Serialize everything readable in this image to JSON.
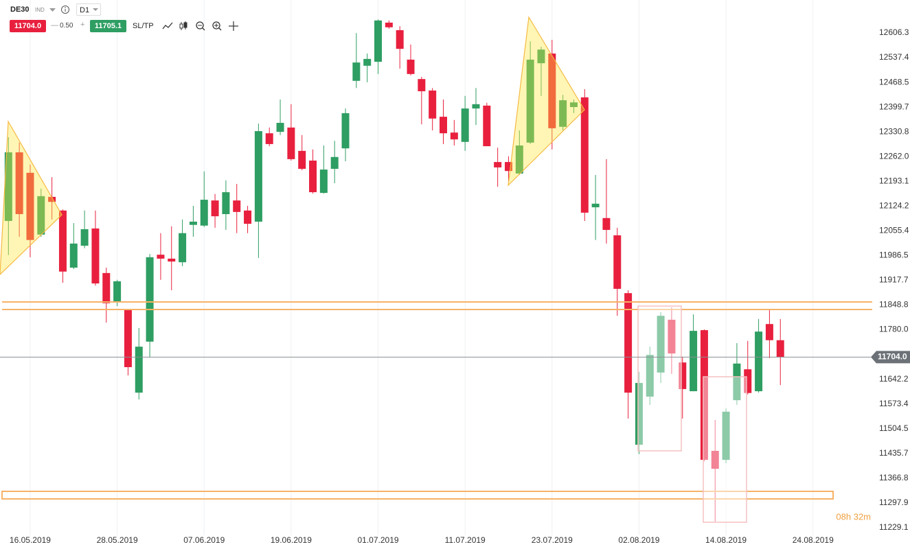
{
  "header": {
    "symbol": "DE30",
    "market": "IND",
    "timeframe": "D1",
    "sell": "11704.0",
    "spread": "0.50",
    "buy": "11705.1",
    "sltp": "SL/TP"
  },
  "chart_data": {
    "type": "candlestick",
    "categories": [
      null,
      null,
      "16.05.2019",
      null,
      null,
      null,
      null,
      null,
      null,
      null,
      "28.05.2019",
      null,
      null,
      null,
      null,
      null,
      null,
      null,
      "07.06.2019",
      null,
      null,
      null,
      null,
      null,
      null,
      null,
      "19.06.2019",
      null,
      null,
      null,
      null,
      null,
      null,
      null,
      "01.07.2019",
      null,
      null,
      null,
      null,
      null,
      null,
      null,
      "11.07.2019",
      null,
      null,
      null,
      null,
      null,
      null,
      null,
      "23.07.2019",
      null,
      null,
      null,
      null,
      null,
      null,
      null,
      "02.08.2019",
      null,
      null,
      null,
      null,
      null,
      null,
      null,
      "14.08.2019",
      null,
      null,
      null,
      null,
      null,
      null,
      null,
      "24.08.2019"
    ],
    "open": [
      12083,
      12274,
      12217,
      12045,
      12150,
      12112,
      11953,
      12014,
      12062,
      11938,
      11858,
      11837,
      11605,
      11747,
      11989,
      11978,
      11968,
      12072,
      12070,
      12140,
      12102,
      12140,
      12112,
      12081,
      12327,
      12331,
      12343,
      12278,
      12251,
      12161,
      12228,
      12285,
      12473,
      12515,
      12526,
      12635,
      12614,
      12532,
      12478,
      12446,
      12373,
      12329,
      12303,
      12396,
      12404,
      12247,
      12247,
      12215,
      12301,
      12522,
      12549,
      12345,
      12400,
      12427,
      12121,
      12091,
      12043,
      11882,
      11460,
      11594,
      11661,
      11808,
      11689,
      11609,
      11779,
      11443,
      11418,
      11584,
      11670,
      11609,
      11796,
      11751,
      null,
      null,
      null
    ],
    "high": [
      12316,
      12301,
      12240,
      12173,
      12205,
      12115,
      12077,
      12112,
      12112,
      11953,
      11919,
      11838,
      11785,
      11991,
      12049,
      12068,
      12087,
      12125,
      12221,
      12158,
      12196,
      12186,
      12125,
      12354,
      12343,
      12421,
      12408,
      12322,
      12282,
      12293,
      12306,
      12396,
      12606,
      12549,
      12644,
      12641,
      12625,
      12574,
      12484,
      12453,
      12421,
      12364,
      12431,
      12453,
      12412,
      12287,
      12263,
      12335,
      12583,
      12568,
      12587,
      12434,
      12421,
      12450,
      12211,
      12255,
      12064,
      11890,
      11663,
      11733,
      11829,
      11842,
      11705,
      11823,
      11781,
      11529,
      11561,
      11743,
      11749,
      11810,
      11835,
      11810,
      null,
      null,
      null
    ],
    "low": [
      11988,
      12039,
      11982,
      12039,
      12087,
      11911,
      11949,
      12007,
      11903,
      11800,
      11846,
      11653,
      11586,
      11703,
      11919,
      11890,
      11957,
      12039,
      12066,
      12064,
      12058,
      12049,
      12049,
      11980,
      12291,
      12322,
      12251,
      12224,
      12159,
      12159,
      12188,
      12249,
      12453,
      12469,
      12492,
      12618,
      12507,
      12488,
      12352,
      12335,
      12297,
      12293,
      12278,
      12350,
      12291,
      12178,
      12186,
      12211,
      12297,
      12431,
      12282,
      12335,
      12383,
      12083,
      12030,
      12020,
      11819,
      11533,
      11434,
      11571,
      11632,
      11657,
      11533,
      11609,
      11414,
      11246,
      11409,
      11571,
      11600,
      11605,
      11701,
      11626,
      null,
      null,
      null
    ],
    "close": [
      12274,
      12102,
      12030,
      12152,
      12136,
      11942,
      12020,
      12060,
      11909,
      11854,
      11915,
      11676,
      11733,
      11982,
      11978,
      11970,
      12049,
      12081,
      12142,
      12096,
      12163,
      12108,
      12075,
      12333,
      12297,
      12356,
      12255,
      12228,
      12163,
      12226,
      12261,
      12383,
      12524,
      12534,
      12641,
      12622,
      12562,
      12492,
      12444,
      12368,
      12327,
      12310,
      12396,
      12408,
      12291,
      12232,
      12222,
      12293,
      12532,
      12560,
      12341,
      12419,
      12413,
      12106,
      12131,
      12058,
      11894,
      11605,
      11632,
      11710,
      11819,
      11714,
      11615,
      11777,
      11418,
      11393,
      11552,
      11686,
      11604,
      11775,
      11751,
      11704,
      null,
      null,
      null
    ],
    "up_color": "#2e9e62",
    "down_color": "#e8203e",
    "ylim": [
      11208,
      12698
    ],
    "yticks": [
      12606.3,
      12537.4,
      12468.5,
      12399.7,
      12330.8,
      {
        "value": 12262,
        "label": "12262.0"
      },
      12193.1,
      12124.2,
      12055.4,
      11986.5,
      11917.7,
      11848.8,
      {
        "value": 11780,
        "label": "11780.0"
      },
      11642.2,
      11573.4,
      11504.5,
      11435.7,
      11366.8,
      11297.9,
      11229.1
    ],
    "grid": true,
    "last_price": {
      "value": 11704,
      "label": "11704.0"
    },
    "countdown": "08h 32m"
  }
}
